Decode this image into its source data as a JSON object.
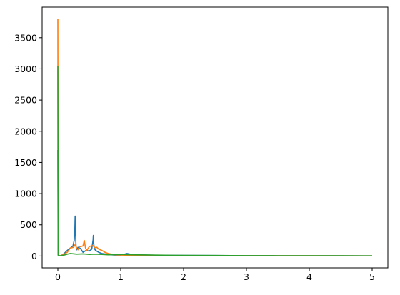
{
  "chart_data": {
    "type": "line",
    "title": "",
    "xlabel": "",
    "ylabel": "",
    "xlim": [
      -0.25,
      5.25
    ],
    "ylim": [
      -190,
      3990
    ],
    "grid": false,
    "legend": "none",
    "xticks": [
      {
        "value": 0,
        "label": "0"
      },
      {
        "value": 1,
        "label": "1"
      },
      {
        "value": 2,
        "label": "2"
      },
      {
        "value": 3,
        "label": "3"
      },
      {
        "value": 4,
        "label": "4"
      },
      {
        "value": 5,
        "label": "5"
      }
    ],
    "yticks": [
      {
        "value": 0,
        "label": "0"
      },
      {
        "value": 500,
        "label": "500"
      },
      {
        "value": 1000,
        "label": "1000"
      },
      {
        "value": 1500,
        "label": "1500"
      },
      {
        "value": 2000,
        "label": "2000"
      },
      {
        "value": 2500,
        "label": "2500"
      },
      {
        "value": 3000,
        "label": "3000"
      },
      {
        "value": 3500,
        "label": "3500"
      }
    ],
    "series": [
      {
        "color": "#1f77b4",
        "x": [
          0,
          0.005,
          0.01,
          0.05,
          0.1,
          0.15,
          0.2,
          0.24,
          0.26,
          0.27,
          0.275,
          0.28,
          0.285,
          0.29,
          0.3,
          0.32,
          0.36,
          0.4,
          0.45,
          0.5,
          0.54,
          0.56,
          0.565,
          0.57,
          0.58,
          0.6,
          0.65,
          0.7,
          0.8,
          0.9,
          1.0,
          1.1,
          1.15,
          1.2,
          1.4,
          1.6,
          2.0,
          2.5,
          3.0,
          3.5,
          4.0,
          4.5,
          5.0
        ],
        "y": [
          1700,
          20,
          5,
          5,
          40,
          90,
          130,
          160,
          250,
          440,
          640,
          430,
          250,
          150,
          100,
          140,
          120,
          60,
          90,
          80,
          110,
          260,
          330,
          200,
          120,
          90,
          60,
          40,
          25,
          15,
          15,
          40,
          30,
          20,
          15,
          12,
          10,
          8,
          6,
          5,
          4,
          3,
          2
        ]
      },
      {
        "color": "#ff7f0e",
        "x": [
          0,
          0.005,
          0.01,
          0.05,
          0.1,
          0.15,
          0.2,
          0.25,
          0.28,
          0.3,
          0.32,
          0.35,
          0.4,
          0.42,
          0.44,
          0.46,
          0.5,
          0.55,
          0.6,
          0.62,
          0.65,
          0.7,
          0.75,
          0.8,
          0.85,
          0.9,
          1.0,
          1.2,
          1.5,
          2.0,
          3.0,
          4.0,
          5.0
        ],
        "y": [
          3800,
          20,
          5,
          5,
          30,
          60,
          130,
          140,
          190,
          120,
          100,
          150,
          160,
          250,
          130,
          90,
          150,
          170,
          130,
          140,
          110,
          90,
          60,
          40,
          30,
          20,
          15,
          10,
          8,
          6,
          4,
          3,
          2
        ]
      },
      {
        "color": "#2ca02c",
        "x": [
          0,
          0.005,
          0.01,
          0.05,
          0.1,
          0.15,
          0.2,
          0.3,
          0.4,
          0.5,
          0.6,
          0.7,
          0.8,
          1.0,
          1.2,
          1.5,
          1.8,
          2.0,
          2.5,
          3.0,
          3.5,
          4.0,
          4.5,
          5.0
        ],
        "y": [
          3050,
          15,
          5,
          5,
          15,
          30,
          40,
          30,
          35,
          25,
          30,
          25,
          20,
          25,
          20,
          15,
          12,
          10,
          8,
          6,
          5,
          4,
          3,
          2
        ]
      }
    ]
  }
}
